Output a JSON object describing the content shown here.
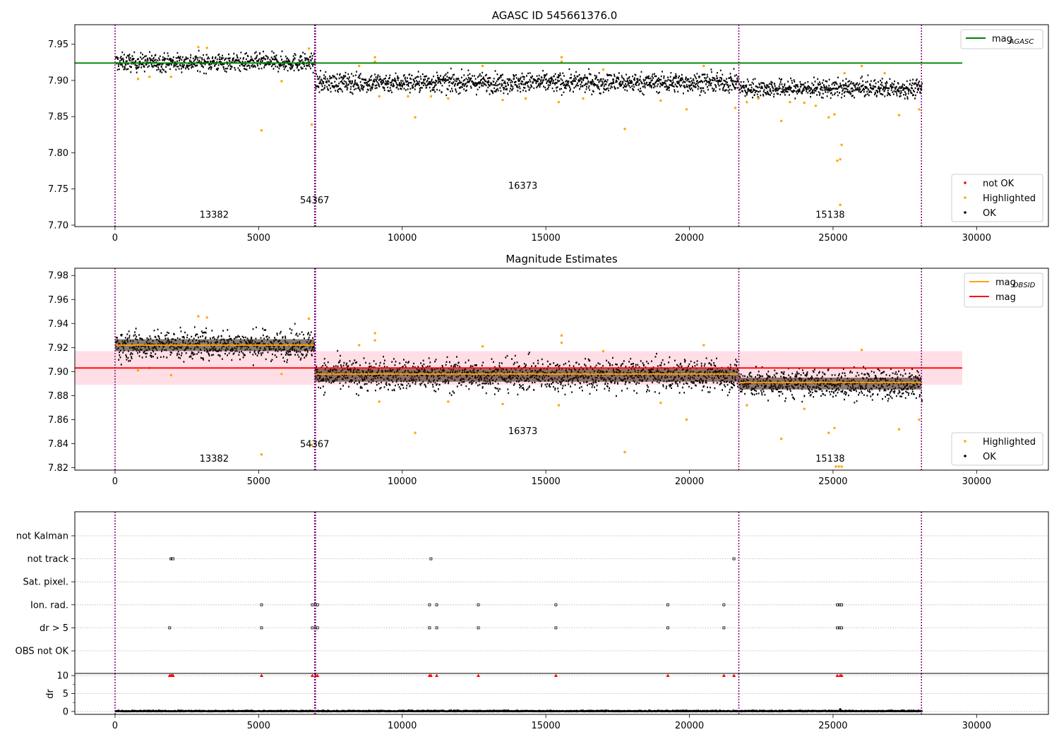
{
  "figure": {
    "colors": {
      "ok": "#000000",
      "highlighted": "#ffa500",
      "not_ok": "#ff0000",
      "agasc_line": "#008000",
      "obsid_line": "#ffa500",
      "mean_line": "#ff0000",
      "band_fill": "#ffc0cb",
      "obs_boundary": "#800080",
      "grid": "#b0b0b0"
    },
    "obs_boundaries": [
      0,
      6950,
      6980,
      21720,
      28080
    ],
    "obs_labels": [
      {
        "x": 3450,
        "text": "13382"
      },
      {
        "x": 6950,
        "text": "54367"
      },
      {
        "x": 14200,
        "text": "16373"
      },
      {
        "x": 24900,
        "text": "15138"
      }
    ]
  },
  "chart_data": [
    {
      "type": "scatter",
      "title": "AGASC ID 545661376.0",
      "xlim": [
        -1400,
        32500
      ],
      "ylim": [
        7.698,
        7.977
      ],
      "xticks": [
        0,
        5000,
        10000,
        15000,
        20000,
        25000,
        30000
      ],
      "yticks": [
        7.7,
        7.75,
        7.8,
        7.85,
        7.9,
        7.95
      ],
      "ytick_labels": [
        "7.70",
        "7.75",
        "7.80",
        "7.85",
        "7.90",
        "7.95"
      ],
      "obs_label_y": [
        7.71,
        7.73,
        7.75,
        7.71
      ],
      "segments": [
        {
          "x0": 0,
          "x1": 6950,
          "mean": 7.925,
          "spread": 0.011
        },
        {
          "x0": 6950,
          "x1": 21720,
          "mean": 7.897,
          "spread": 0.012
        },
        {
          "x0": 21720,
          "x1": 28080,
          "mean": 7.889,
          "spread": 0.011
        }
      ],
      "hlines": [
        {
          "name": "mag_AGASC",
          "y": 7.924,
          "x0": -1400,
          "x1": 29500,
          "color": "#008000"
        }
      ],
      "highlighted_points": [
        [
          5100,
          7.831
        ],
        [
          6850,
          7.839
        ],
        [
          10450,
          7.849
        ],
        [
          17750,
          7.833
        ],
        [
          23200,
          7.844
        ],
        [
          24850,
          7.849
        ],
        [
          25050,
          7.853
        ],
        [
          25150,
          7.789
        ],
        [
          25250,
          7.791
        ],
        [
          25300,
          7.811
        ],
        [
          25250,
          7.728
        ],
        [
          27300,
          7.852
        ],
        [
          22000,
          7.87
        ],
        [
          19900,
          7.86
        ],
        [
          2900,
          7.946
        ],
        [
          3200,
          7.945
        ],
        [
          6750,
          7.944
        ],
        [
          9050,
          7.932
        ],
        [
          9050,
          7.926
        ],
        [
          15550,
          7.932
        ],
        [
          15550,
          7.926
        ],
        [
          1200,
          7.905
        ],
        [
          800,
          7.902
        ],
        [
          1950,
          7.905
        ],
        [
          5800,
          7.899
        ],
        [
          9200,
          7.878
        ],
        [
          10200,
          7.878
        ],
        [
          11000,
          7.878
        ],
        [
          13500,
          7.873
        ],
        [
          15450,
          7.87
        ],
        [
          19000,
          7.872
        ],
        [
          21600,
          7.862
        ],
        [
          24000,
          7.869
        ],
        [
          26000,
          7.92
        ],
        [
          25400,
          7.91
        ],
        [
          28000,
          7.86
        ],
        [
          26800,
          7.91
        ],
        [
          20500,
          7.92
        ],
        [
          8500,
          7.92
        ],
        [
          12800,
          7.92
        ],
        [
          17000,
          7.915
        ],
        [
          14300,
          7.875
        ],
        [
          16300,
          7.875
        ],
        [
          11600,
          7.875
        ],
        [
          22400,
          7.875
        ],
        [
          23500,
          7.87
        ],
        [
          24400,
          7.865
        ]
      ],
      "legends": [
        {
          "position": "upper right",
          "entries": [
            {
              "label": "mag",
              "sub": "AGASC",
              "kind": "line",
              "color": "#008000"
            }
          ]
        },
        {
          "position": "lower right",
          "entries": [
            {
              "label": "not OK",
              "kind": "dot",
              "color": "#ff0000"
            },
            {
              "label": "Highlighted",
              "kind": "dot",
              "color": "#ffa500"
            },
            {
              "label": "OK",
              "kind": "dot",
              "color": "#000000"
            }
          ]
        }
      ]
    },
    {
      "type": "scatter",
      "title": "Magnitude Estimates",
      "xlim": [
        -1400,
        32500
      ],
      "ylim": [
        7.818,
        7.986
      ],
      "xticks": [
        0,
        5000,
        10000,
        15000,
        20000,
        25000,
        30000
      ],
      "yticks": [
        7.82,
        7.84,
        7.86,
        7.88,
        7.9,
        7.92,
        7.94,
        7.96,
        7.98
      ],
      "ytick_labels": [
        "7.82",
        "7.84",
        "7.86",
        "7.88",
        "7.90",
        "7.92",
        "7.94",
        "7.96",
        "7.98"
      ],
      "obs_label_y": [
        7.825,
        7.837,
        7.848,
        7.825
      ],
      "band": {
        "y0": 7.889,
        "y1": 7.917,
        "x0": -1400,
        "x1": 29500
      },
      "segments": [
        {
          "x0": 0,
          "x1": 6950,
          "mean": 7.922,
          "spread": 0.011
        },
        {
          "x0": 6950,
          "x1": 21720,
          "mean": 7.897,
          "spread": 0.012
        },
        {
          "x0": 21720,
          "x1": 28080,
          "mean": 7.89,
          "spread": 0.011
        }
      ],
      "hlines": [
        {
          "name": "mag_OBSID_1",
          "y": 7.922,
          "x0": 0,
          "x1": 6950,
          "color": "#ffa500"
        },
        {
          "name": "mag_OBSID_2",
          "y": 7.898,
          "x0": 6950,
          "x1": 21720,
          "color": "#ffa500"
        },
        {
          "name": "mag_OBSID_3",
          "y": 7.891,
          "x0": 21720,
          "x1": 28080,
          "color": "#ffa500"
        },
        {
          "name": "mag",
          "y": 7.903,
          "x0": -1400,
          "x1": 29500,
          "color": "#ff0000"
        }
      ],
      "highlighted_points": [
        [
          5100,
          7.831
        ],
        [
          6850,
          7.839
        ],
        [
          10450,
          7.849
        ],
        [
          17750,
          7.833
        ],
        [
          23200,
          7.844
        ],
        [
          24850,
          7.849
        ],
        [
          25050,
          7.853
        ],
        [
          27300,
          7.852
        ],
        [
          2900,
          7.946
        ],
        [
          3200,
          7.945
        ],
        [
          6750,
          7.944
        ],
        [
          9050,
          7.932
        ],
        [
          9050,
          7.926
        ],
        [
          15550,
          7.93
        ],
        [
          15550,
          7.924
        ],
        [
          1200,
          7.903
        ],
        [
          800,
          7.901
        ],
        [
          1950,
          7.897
        ],
        [
          5800,
          7.898
        ],
        [
          25100,
          7.821
        ],
        [
          25200,
          7.821
        ],
        [
          25300,
          7.821
        ],
        [
          19900,
          7.86
        ],
        [
          22000,
          7.872
        ],
        [
          28000,
          7.86
        ],
        [
          9200,
          7.875
        ],
        [
          13500,
          7.873
        ],
        [
          15450,
          7.872
        ],
        [
          19000,
          7.874
        ],
        [
          26000,
          7.918
        ],
        [
          20500,
          7.922
        ],
        [
          8500,
          7.922
        ],
        [
          12800,
          7.921
        ],
        [
          17000,
          7.917
        ],
        [
          24000,
          7.869
        ],
        [
          11600,
          7.875
        ]
      ],
      "legends": [
        {
          "position": "upper right",
          "entries": [
            {
              "label": "mag",
              "sub": "OBSID",
              "kind": "line",
              "color": "#ffa500"
            },
            {
              "label": "mag",
              "kind": "line",
              "color": "#ff0000"
            }
          ]
        },
        {
          "position": "lower right",
          "entries": [
            {
              "label": "Highlighted",
              "kind": "dot",
              "color": "#ffa500"
            },
            {
              "label": "OK",
              "kind": "dot",
              "color": "#000000"
            }
          ]
        }
      ]
    },
    {
      "type": "scatter",
      "title": "",
      "xlim": [
        -1400,
        32500
      ],
      "xticks": [
        0,
        5000,
        10000,
        15000,
        20000,
        25000,
        30000
      ],
      "categories": [
        "not Kalman",
        "not track",
        "Sat. pixel.",
        "Ion. rad.",
        "dr > 5",
        "OBS not OK"
      ],
      "flags": {
        "not Kalman": [],
        "not track": [
          1950,
          1990,
          2020,
          11000,
          21550
        ],
        "Sat. pixel.": [],
        "Ion. rad.": [
          5100,
          6870,
          6980,
          7050,
          10950,
          11200,
          12650,
          15350,
          19250,
          21200,
          25150,
          25250,
          25300
        ],
        "dr > 5": [
          1900,
          5100,
          6870,
          6980,
          7050,
          10950,
          11200,
          12650,
          15350,
          19250,
          21200,
          25150,
          25250,
          25300
        ],
        "OBS not OK": []
      },
      "dr_panel": {
        "ylabel": "dr",
        "ylim": [
          -0.8,
          10.6
        ],
        "yticks": [
          0,
          5,
          10
        ],
        "ytick_labels": [
          "0",
          "5",
          "10"
        ],
        "spikes": [
          1900,
          1950,
          1990,
          2020,
          5100,
          6870,
          6980,
          7050,
          10950,
          11000,
          11200,
          12650,
          15350,
          19250,
          21200,
          21550,
          25150,
          25250,
          25300
        ]
      }
    }
  ]
}
